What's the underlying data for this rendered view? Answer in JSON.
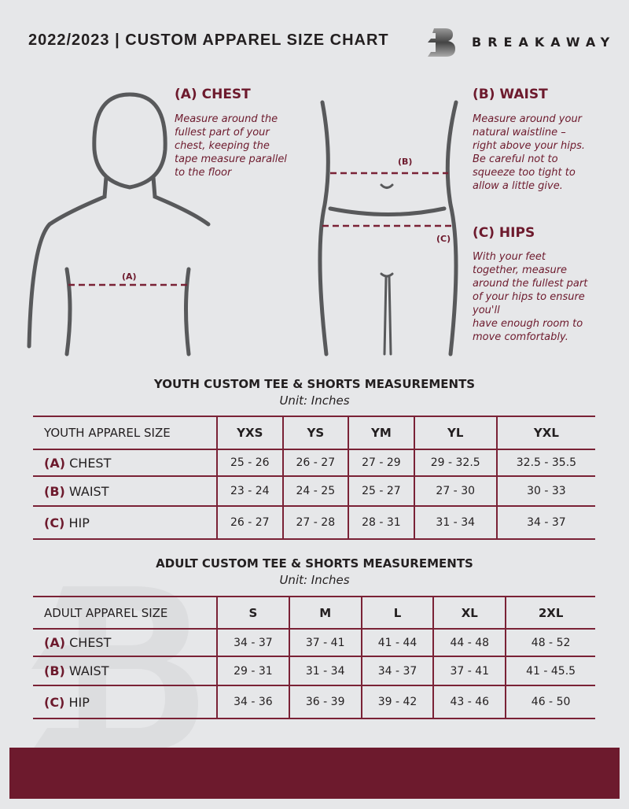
{
  "header": {
    "title": "2022/2023  |  CUSTOM APPAREL SIZE CHART",
    "brand": "BREAKAWAY",
    "logo_letter": "B"
  },
  "measure": {
    "chest": {
      "heading": "(A) CHEST",
      "text": [
        "Measure around the",
        "fullest part of your",
        "chest, keeping the",
        "tape measure parallel",
        "to the floor"
      ],
      "marker": "(A)"
    },
    "waist": {
      "heading": "(B) WAIST",
      "text": [
        "Measure around your",
        "natural waistline –",
        "right above your hips.",
        "Be careful not to",
        "squeeze too tight to",
        "allow a little give."
      ],
      "marker": "(B)"
    },
    "hips": {
      "heading": "(C) HIPS",
      "text": [
        "With your feet",
        "together, measure",
        "around the fullest part",
        "of your hips to ensure",
        "you'll",
        "have enough room to",
        "move comfortably."
      ],
      "marker": "(C)"
    }
  },
  "youth": {
    "title": "YOUTH CUSTOM TEE & SHORTS MEASUREMENTS",
    "unit": "Unit: Inches",
    "header": "YOUTH APPAREL SIZE",
    "sizes": [
      "YXS",
      "YS",
      "YM",
      "YL",
      "YXL"
    ],
    "rows": [
      {
        "code": "(A)",
        "label": "CHEST",
        "values": [
          "25 - 26",
          "26 - 27",
          "27 - 29",
          "29 - 32.5",
          "32.5 - 35.5"
        ]
      },
      {
        "code": "(B)",
        "label": "WAIST",
        "values": [
          "23 - 24",
          "24 - 25",
          "25 - 27",
          "27 - 30",
          "30 - 33"
        ]
      },
      {
        "code": "(C)",
        "label": "HIP",
        "values": [
          "26 - 27",
          "27 - 28",
          "28 - 31",
          "31 - 34",
          "34 - 37"
        ]
      }
    ]
  },
  "adult": {
    "title": "ADULT CUSTOM TEE & SHORTS MEASUREMENTS",
    "unit": "Unit: Inches",
    "header": "ADULT APPAREL SIZE",
    "sizes": [
      "S",
      "M",
      "L",
      "XL",
      "2XL"
    ],
    "rows": [
      {
        "code": "(A)",
        "label": "CHEST",
        "values": [
          "34 - 37",
          "37 - 41",
          "41 - 44",
          "44 - 48",
          "48 - 52"
        ]
      },
      {
        "code": "(B)",
        "label": "WAIST",
        "values": [
          "29 - 31",
          "31 - 34",
          "34 - 37",
          "37 - 41",
          "41 - 45.5"
        ]
      },
      {
        "code": "(C)",
        "label": "HIP",
        "values": [
          "34 - 36",
          "36 - 39",
          "39 - 42",
          "43 - 46",
          "46 - 50"
        ]
      }
    ]
  },
  "colors": {
    "accent": "#6d1a2d",
    "background": "#e6e7e9"
  }
}
